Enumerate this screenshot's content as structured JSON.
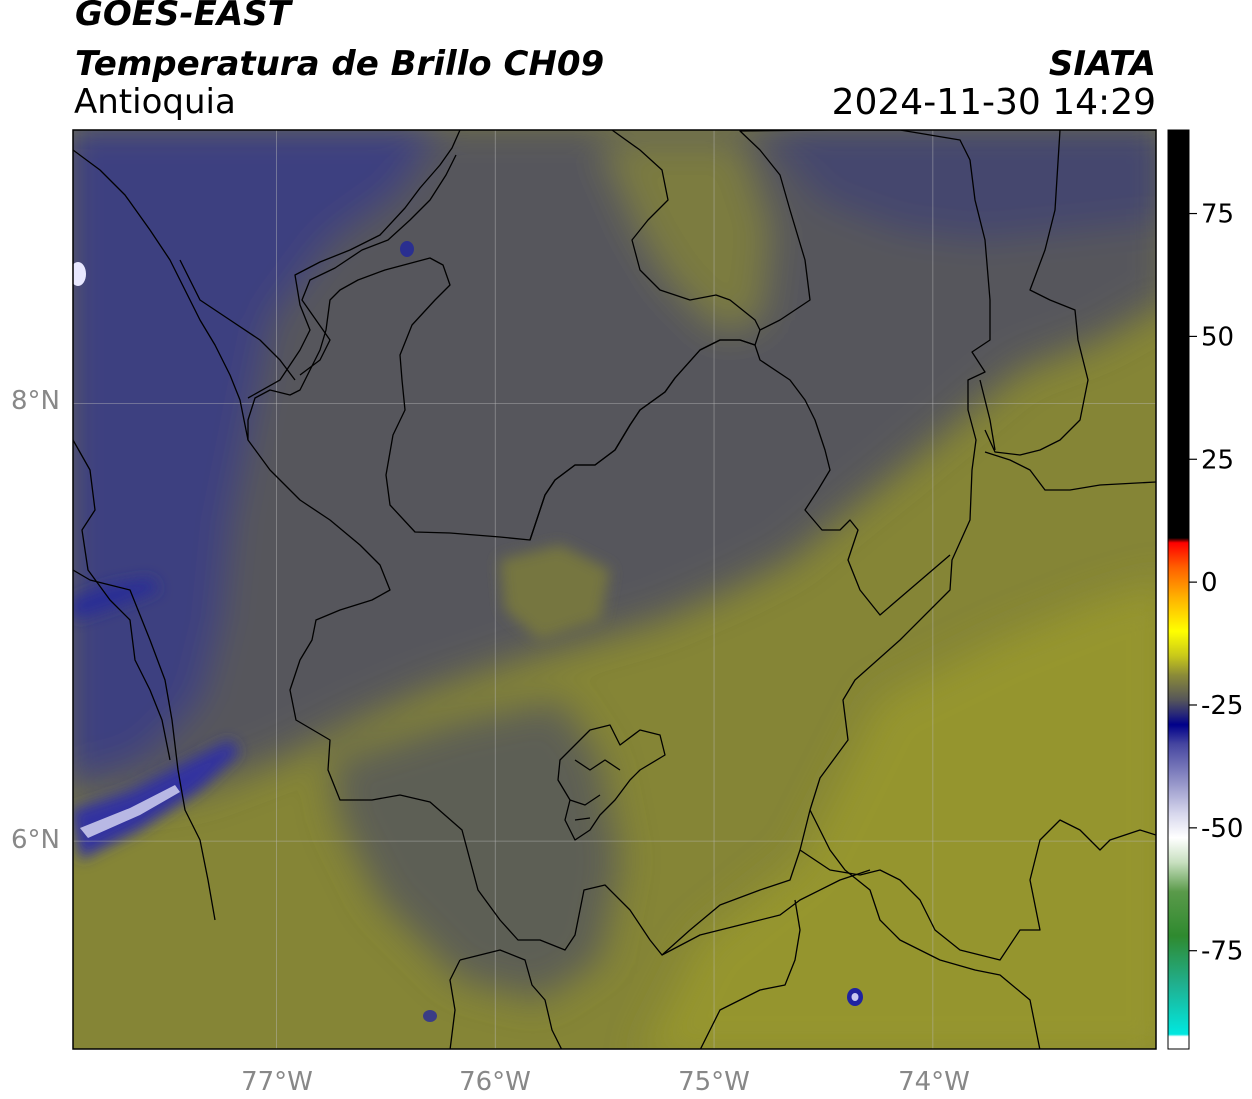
{
  "header": {
    "satellite": "GOES-EAST",
    "product": "Temperatura de Brillo CH09",
    "region": "Antioquia",
    "organization": "SIATA",
    "datetime": "2024-11-30 14:29"
  },
  "map": {
    "extent_lon": [
      -77.93,
      -72.98
    ],
    "extent_lat": [
      5.05,
      9.25
    ],
    "lat_gridlines": [
      {
        "value": 8,
        "label": "8°N"
      },
      {
        "value": 6,
        "label": "6°N"
      }
    ],
    "lon_gridlines": [
      {
        "value": -77,
        "label": "77°W"
      },
      {
        "value": -76,
        "label": "76°W"
      },
      {
        "value": -75,
        "label": "75°W"
      },
      {
        "value": -74,
        "label": "74°W"
      }
    ],
    "colors": {
      "warm_olive": "#8a8a35",
      "mid_gray": "#54555b",
      "cold_navy": "#3c3f7e",
      "grid": "#bbbbbb"
    }
  },
  "colorbar": {
    "range": [
      -95,
      92
    ],
    "ticks": [
      {
        "value": 75,
        "label": "75"
      },
      {
        "value": 50,
        "label": "50"
      },
      {
        "value": 25,
        "label": "25"
      },
      {
        "value": 0,
        "label": "0"
      },
      {
        "value": -25,
        "label": "-25"
      },
      {
        "value": -50,
        "label": "-50"
      },
      {
        "value": -75,
        "label": "-75"
      }
    ],
    "stops": [
      {
        "value": -95,
        "color": "#ffffff"
      },
      {
        "value": -92.5,
        "color": "#ffffff"
      },
      {
        "value": -92,
        "color": "#00e8e0"
      },
      {
        "value": -82,
        "color": "#20b090"
      },
      {
        "value": -72,
        "color": "#2f8a2f"
      },
      {
        "value": -63,
        "color": "#5a9a4a"
      },
      {
        "value": -57,
        "color": "#c8e0c0"
      },
      {
        "value": -52,
        "color": "#ffffff"
      },
      {
        "value": -47,
        "color": "#d6d6ec"
      },
      {
        "value": -40,
        "color": "#8c8cc4"
      },
      {
        "value": -33,
        "color": "#4646a0"
      },
      {
        "value": -29,
        "color": "#00008a"
      },
      {
        "value": -27,
        "color": "#25257a"
      },
      {
        "value": -24,
        "color": "#55555a"
      },
      {
        "value": -19,
        "color": "#8a8a38"
      },
      {
        "value": -15,
        "color": "#c8c81a"
      },
      {
        "value": -10,
        "color": "#ffff00"
      },
      {
        "value": -3,
        "color": "#ffb000"
      },
      {
        "value": 3,
        "color": "#ff6000"
      },
      {
        "value": 8,
        "color": "#ff0000"
      },
      {
        "value": 9,
        "color": "#000000"
      },
      {
        "value": 92,
        "color": "#000000"
      }
    ]
  }
}
